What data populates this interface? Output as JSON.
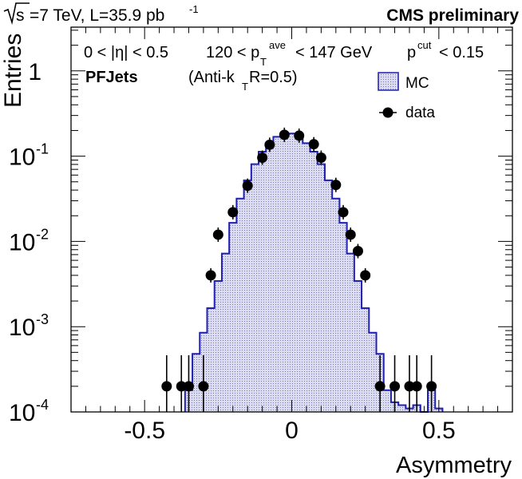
{
  "header": {
    "energy_sqrt": "s",
    "energy_rest": "=7 TeV, L=35.9 pb",
    "energy_sup": "-1",
    "experiment": "CMS preliminary"
  },
  "annotations": {
    "eta_cut": "0 < |η| < 0.5",
    "pt_low": "120 < p",
    "pt_sup": "ave",
    "pt_sub": "T",
    "pt_high": "< 147 GeV",
    "pcut": "p",
    "pcut_sup": "cut",
    "pcut_rest": "< 0.15",
    "jets_bold": "PFJets",
    "algo_pre": "(Anti-k",
    "algo_sub": "T",
    "algo_post": " R=0.5)"
  },
  "chart_data": {
    "type": "histogram",
    "xlabel": "Asymmetry",
    "ylabel": "Entries",
    "xlim": [
      -0.75,
      0.75
    ],
    "ylim": [
      0.0001,
      3
    ],
    "yscale": "log",
    "grid": false,
    "legend_position": "top-right",
    "x_ticks": [
      {
        "value": -0.5,
        "label": "-0.5"
      },
      {
        "value": 0,
        "label": "0"
      },
      {
        "value": 0.5,
        "label": "0.5"
      }
    ],
    "y_ticks": [
      {
        "value": 0.0001,
        "base": "10",
        "exp": "-4"
      },
      {
        "value": 0.001,
        "base": "10",
        "exp": "-3"
      },
      {
        "value": 0.01,
        "base": "10",
        "exp": "-2"
      },
      {
        "value": 0.1,
        "base": "10",
        "exp": "-1"
      },
      {
        "value": 1,
        "base": "1",
        "exp": ""
      }
    ],
    "series": [
      {
        "name": "MC",
        "style": "filled-step",
        "color": "#1f1fb4",
        "fill": "#d0d0ec",
        "bins": [
          [
            -0.3625,
            -0.3375,
            0.00018
          ],
          [
            -0.3375,
            -0.3125,
            0.00048
          ],
          [
            -0.3125,
            -0.2875,
            0.00085
          ],
          [
            -0.2875,
            -0.2625,
            0.00165
          ],
          [
            -0.2625,
            -0.2375,
            0.00343
          ],
          [
            -0.2375,
            -0.2125,
            0.0072
          ],
          [
            -0.2125,
            -0.1875,
            0.0165
          ],
          [
            -0.1875,
            -0.1625,
            0.0318
          ],
          [
            -0.1625,
            -0.1375,
            0.052
          ],
          [
            -0.1375,
            -0.1125,
            0.0806
          ],
          [
            -0.1125,
            -0.0875,
            0.1127
          ],
          [
            -0.0875,
            -0.0625,
            0.1417
          ],
          [
            -0.0625,
            -0.0375,
            0.1686
          ],
          [
            -0.0375,
            0.0125,
            0.1843
          ],
          [
            0.0125,
            0.0375,
            0.1686
          ],
          [
            0.0375,
            0.0625,
            0.1417
          ],
          [
            0.0625,
            0.0875,
            0.1127
          ],
          [
            0.0875,
            0.1125,
            0.0806
          ],
          [
            0.1125,
            0.1375,
            0.052
          ],
          [
            0.1375,
            0.1625,
            0.0318
          ],
          [
            0.1625,
            0.1875,
            0.0165
          ],
          [
            0.1875,
            0.2125,
            0.0072
          ],
          [
            0.2125,
            0.2375,
            0.00343
          ],
          [
            0.2375,
            0.2625,
            0.00165
          ],
          [
            0.2625,
            0.2875,
            0.00085
          ],
          [
            0.2875,
            0.3125,
            0.00048
          ],
          [
            0.3125,
            0.3375,
            0.00018
          ],
          [
            0.3375,
            0.3625,
            0.00013
          ],
          [
            0.3625,
            0.3875,
            0.00012
          ],
          [
            0.3875,
            0.4125,
            0.00011
          ],
          [
            0.4125,
            0.4375,
            0.00012
          ],
          [
            0.4375,
            0.4625,
            0.0001
          ],
          [
            0.4625,
            0.4875,
            0.00018
          ],
          [
            0.4875,
            0.5125,
            0.00011
          ]
        ]
      },
      {
        "name": "data",
        "style": "points",
        "color": "#000000",
        "points": [
          [
            -0.425,
            0.0002,
            true
          ],
          [
            -0.375,
            0.0002,
            true
          ],
          [
            -0.35,
            0.0002,
            true
          ],
          [
            -0.3,
            0.0002,
            true
          ],
          [
            -0.275,
            0.004,
            false
          ],
          [
            -0.25,
            0.012,
            false
          ],
          [
            -0.2,
            0.022,
            false
          ],
          [
            -0.15,
            0.045,
            false
          ],
          [
            -0.1,
            0.096,
            false
          ],
          [
            -0.075,
            0.136,
            false
          ],
          [
            -0.025,
            0.178,
            false
          ],
          [
            0.025,
            0.174,
            false
          ],
          [
            0.075,
            0.138,
            false
          ],
          [
            0.1,
            0.096,
            false
          ],
          [
            0.15,
            0.046,
            false
          ],
          [
            0.175,
            0.022,
            false
          ],
          [
            0.2,
            0.012,
            false
          ],
          [
            0.225,
            0.0077,
            false
          ],
          [
            0.25,
            0.004,
            false
          ],
          [
            0.3,
            0.0002,
            true
          ],
          [
            0.35,
            0.0002,
            true
          ],
          [
            0.4,
            0.0002,
            true
          ],
          [
            0.425,
            0.0002,
            true
          ],
          [
            0.475,
            0.0002,
            true
          ]
        ]
      }
    ]
  }
}
